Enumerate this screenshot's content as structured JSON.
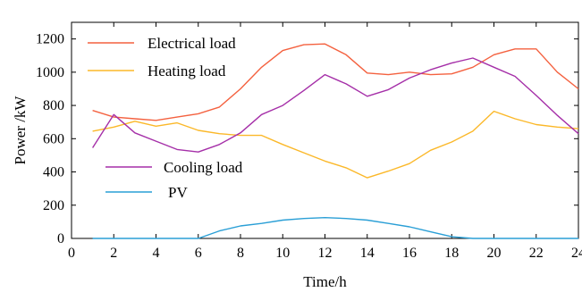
{
  "chart_data": {
    "type": "line",
    "title": "",
    "xlabel": "Time/h",
    "ylabel": "Power /kW",
    "xlim": [
      0,
      24
    ],
    "ylim": [
      0,
      1300
    ],
    "xticks": [
      0,
      2,
      4,
      6,
      8,
      10,
      12,
      14,
      16,
      18,
      20,
      22,
      24
    ],
    "yticks": [
      0,
      200,
      400,
      600,
      800,
      1000,
      1200
    ],
    "grid": false,
    "x": [
      1,
      2,
      3,
      4,
      5,
      6,
      7,
      8,
      9,
      10,
      11,
      12,
      13,
      14,
      15,
      16,
      17,
      18,
      19,
      20,
      21,
      22,
      23,
      24
    ],
    "series": [
      {
        "name": "Electrical load",
        "color": "#f4613f",
        "values": [
          770,
          730,
          720,
          710,
          730,
          750,
          790,
          900,
          1030,
          1130,
          1165,
          1170,
          1105,
          995,
          985,
          1000,
          985,
          990,
          1030,
          1105,
          1140,
          1140,
          1000,
          900
        ]
      },
      {
        "name": "Heating load",
        "color": "#fbb829",
        "values": [
          645,
          670,
          705,
          675,
          695,
          650,
          630,
          620,
          620,
          565,
          515,
          465,
          425,
          365,
          405,
          450,
          530,
          580,
          645,
          765,
          720,
          685,
          670,
          660
        ]
      },
      {
        "name": "Cooling load",
        "color": "#a52fa8",
        "values": [
          545,
          745,
          635,
          585,
          535,
          520,
          565,
          635,
          745,
          800,
          890,
          985,
          930,
          855,
          895,
          965,
          1015,
          1055,
          1085,
          1030,
          975,
          860,
          740,
          630
        ]
      },
      {
        "name": "PV",
        "color": "#2a9fd6",
        "values": [
          0,
          0,
          0,
          0,
          0,
          0,
          45,
          75,
          90,
          110,
          120,
          125,
          120,
          110,
          90,
          70,
          40,
          10,
          0,
          0,
          0,
          0,
          0,
          0
        ]
      }
    ]
  }
}
